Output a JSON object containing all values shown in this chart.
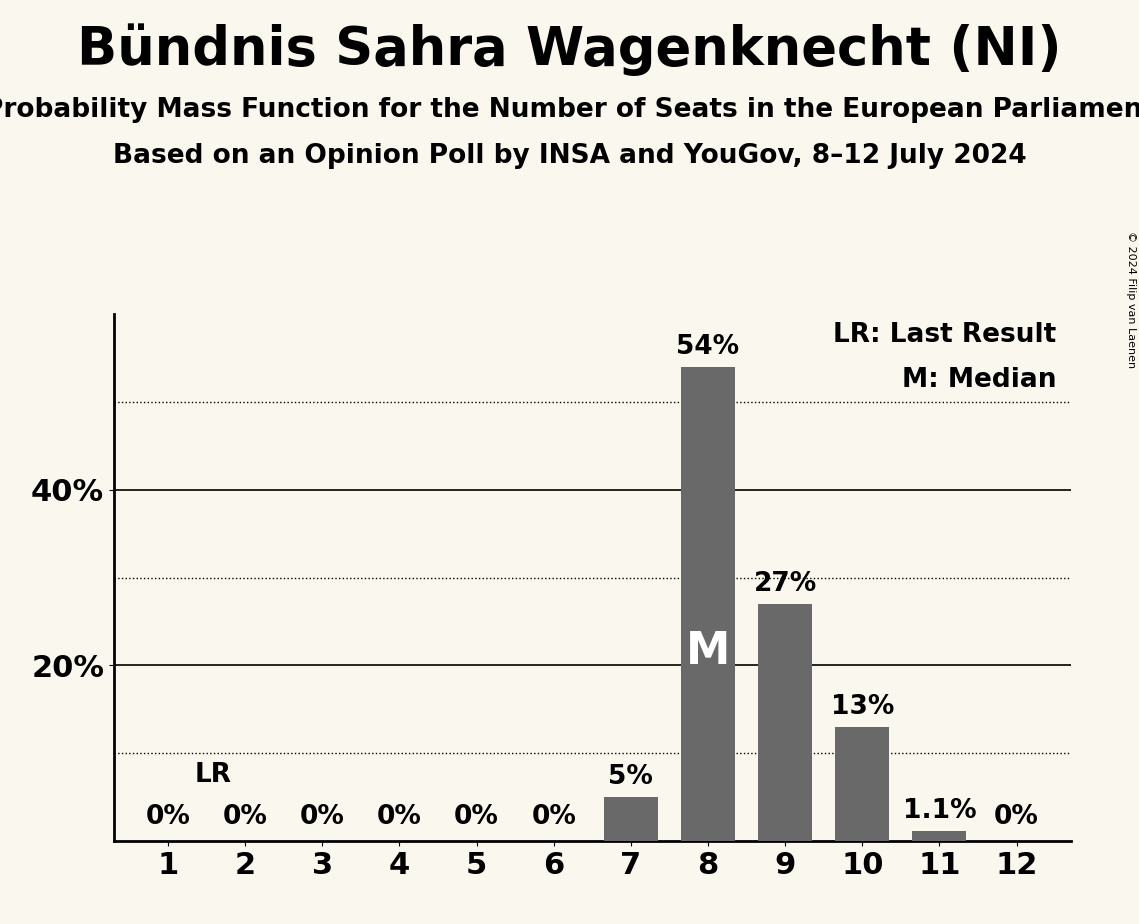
{
  "title": "Bündnis Sahra Wagenknecht (NI)",
  "subtitle1": "Probability Mass Function for the Number of Seats in the European Parliament",
  "subtitle2": "Based on an Opinion Poll by INSA and YouGov, 8–12 July 2024",
  "categories": [
    1,
    2,
    3,
    4,
    5,
    6,
    7,
    8,
    9,
    10,
    11,
    12
  ],
  "values": [
    0.0,
    0.0,
    0.0,
    0.0,
    0.0,
    0.0,
    5.0,
    54.0,
    27.0,
    13.0,
    1.1,
    0.0
  ],
  "bar_color": "#696969",
  "background_color": "#FAF8EE",
  "title_fontsize": 38,
  "subtitle_fontsize": 19,
  "bar_label_fontsize": 19,
  "tick_fontsize": 22,
  "legend_fontsize": 19,
  "ylim": [
    0,
    60
  ],
  "yticks": [
    20,
    40
  ],
  "ytick_labels": [
    "20%",
    "40%"
  ],
  "solid_lines": [
    20,
    40
  ],
  "dotted_lines": [
    10,
    30,
    50
  ],
  "median_seat": 8,
  "median_label": "M",
  "lr_label": "LR",
  "legend_lr": "LR: Last Result",
  "legend_m": "M: Median",
  "copyright": "© 2024 Filip van Laenen",
  "bar_label_format": {
    "1": "0%",
    "2": "0%",
    "3": "0%",
    "4": "0%",
    "5": "0%",
    "6": "0%",
    "7": "5%",
    "8": "54%",
    "9": "27%",
    "10": "13%",
    "11": "1.1%",
    "12": "0%"
  }
}
